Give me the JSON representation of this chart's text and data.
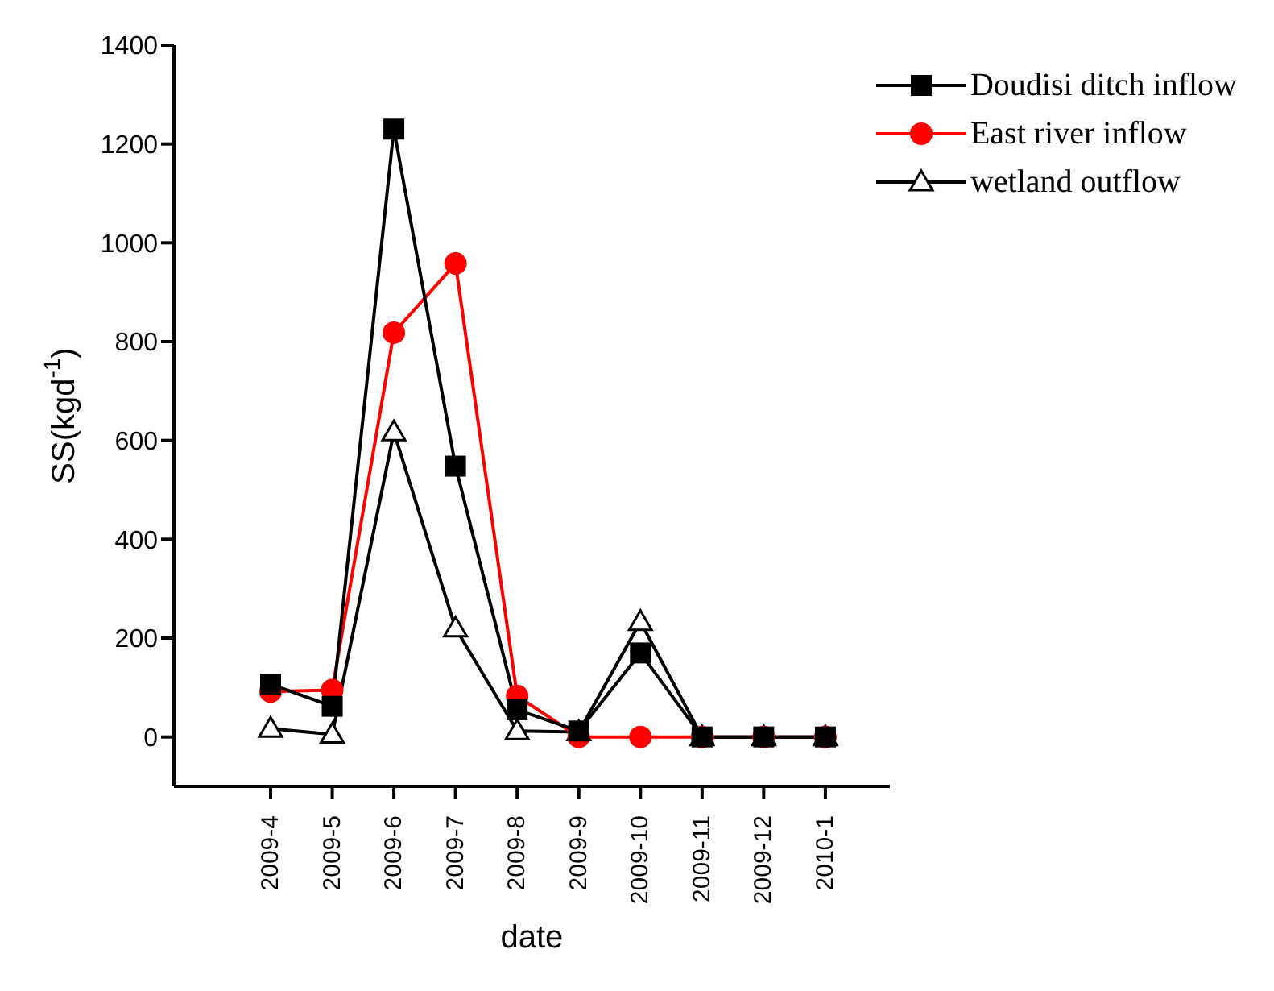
{
  "chart_data": {
    "type": "line",
    "xlabel": "date",
    "ylabel": "SS(kgd$^{-1}$)",
    "categories": [
      "2009-4",
      "2009-5",
      "2009-6",
      "2009-7",
      "2009-8",
      "2009-9",
      "2009-10",
      "2009-11",
      "2009-12",
      "2010-1"
    ],
    "series": [
      {
        "name": "Doudisi ditch inflow",
        "color": "#000000",
        "marker": "square",
        "values": [
          107,
          62,
          1230,
          548,
          55,
          12,
          170,
          0,
          0,
          0
        ]
      },
      {
        "name": "East river inflow",
        "color": "#ff0000",
        "marker": "circle",
        "values": [
          92,
          95,
          818,
          958,
          83,
          0,
          0,
          0,
          0,
          0
        ]
      },
      {
        "name": "wetland outflow",
        "color": "#000000",
        "marker": "triangle",
        "values": [
          17,
          5,
          617,
          220,
          12,
          10,
          233,
          0,
          0,
          0
        ]
      }
    ],
    "ylim": [
      -100,
      1400
    ],
    "yticks": [
      0,
      200,
      400,
      600,
      800,
      1000,
      1200,
      1400
    ],
    "grid": false,
    "legend": "top right",
    "line_style": "solid"
  }
}
